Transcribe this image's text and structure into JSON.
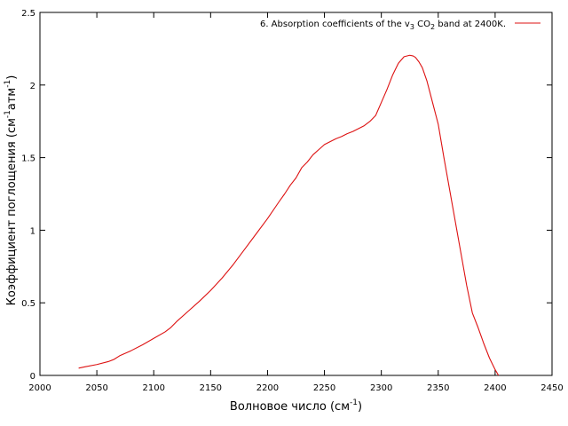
{
  "chart_data": {
    "type": "line",
    "xlabel": {
      "text": "Волновое число (см",
      "sup": "-1",
      "tail": ")"
    },
    "ylabel": {
      "a": "Коэффициент поглощения (см",
      "sup1": "-1",
      "b": "атм",
      "sup2": "-1",
      "c": ")"
    },
    "xlim": [
      2000,
      2450
    ],
    "ylim": [
      0,
      2.5
    ],
    "xticks": [
      2000,
      2050,
      2100,
      2150,
      2200,
      2250,
      2300,
      2350,
      2400,
      2450
    ],
    "yticks": [
      0,
      0.5,
      1,
      1.5,
      2,
      2.5
    ],
    "ytick_labels": [
      "0",
      "0.5",
      "1",
      "1.5",
      "2",
      "2.5"
    ],
    "grid": false,
    "legend_position": "top-right",
    "legend": {
      "t1": "6. Absorption coefficients of the v",
      "s1": "3",
      "t2": " CO",
      "s2": "2",
      "t3": " band at 2400K."
    },
    "series": [
      {
        "color": "#dd1111",
        "x": [
          2034,
          2040,
          2050,
          2060,
          2065,
          2070,
          2080,
          2090,
          2100,
          2110,
          2115,
          2120,
          2130,
          2140,
          2150,
          2160,
          2170,
          2180,
          2190,
          2200,
          2210,
          2215,
          2220,
          2225,
          2230,
          2235,
          2240,
          2245,
          2250,
          2255,
          2260,
          2265,
          2270,
          2275,
          2280,
          2285,
          2290,
          2295,
          2300,
          2305,
          2310,
          2315,
          2320,
          2325,
          2328,
          2330,
          2333,
          2336,
          2340,
          2345,
          2350,
          2355,
          2360,
          2365,
          2370,
          2375,
          2380,
          2385,
          2390,
          2395,
          2400,
          2403
        ],
        "y": [
          0.05,
          0.06,
          0.075,
          0.095,
          0.11,
          0.135,
          0.17,
          0.21,
          0.255,
          0.3,
          0.33,
          0.37,
          0.44,
          0.51,
          0.585,
          0.67,
          0.765,
          0.87,
          0.975,
          1.08,
          1.195,
          1.25,
          1.31,
          1.36,
          1.43,
          1.47,
          1.52,
          1.555,
          1.59,
          1.61,
          1.63,
          1.645,
          1.665,
          1.68,
          1.7,
          1.72,
          1.75,
          1.79,
          1.88,
          1.97,
          2.07,
          2.15,
          2.195,
          2.205,
          2.2,
          2.19,
          2.16,
          2.12,
          2.03,
          1.88,
          1.73,
          1.5,
          1.28,
          1.06,
          0.84,
          0.62,
          0.43,
          0.33,
          0.22,
          0.12,
          0.04,
          0.0
        ]
      }
    ]
  }
}
